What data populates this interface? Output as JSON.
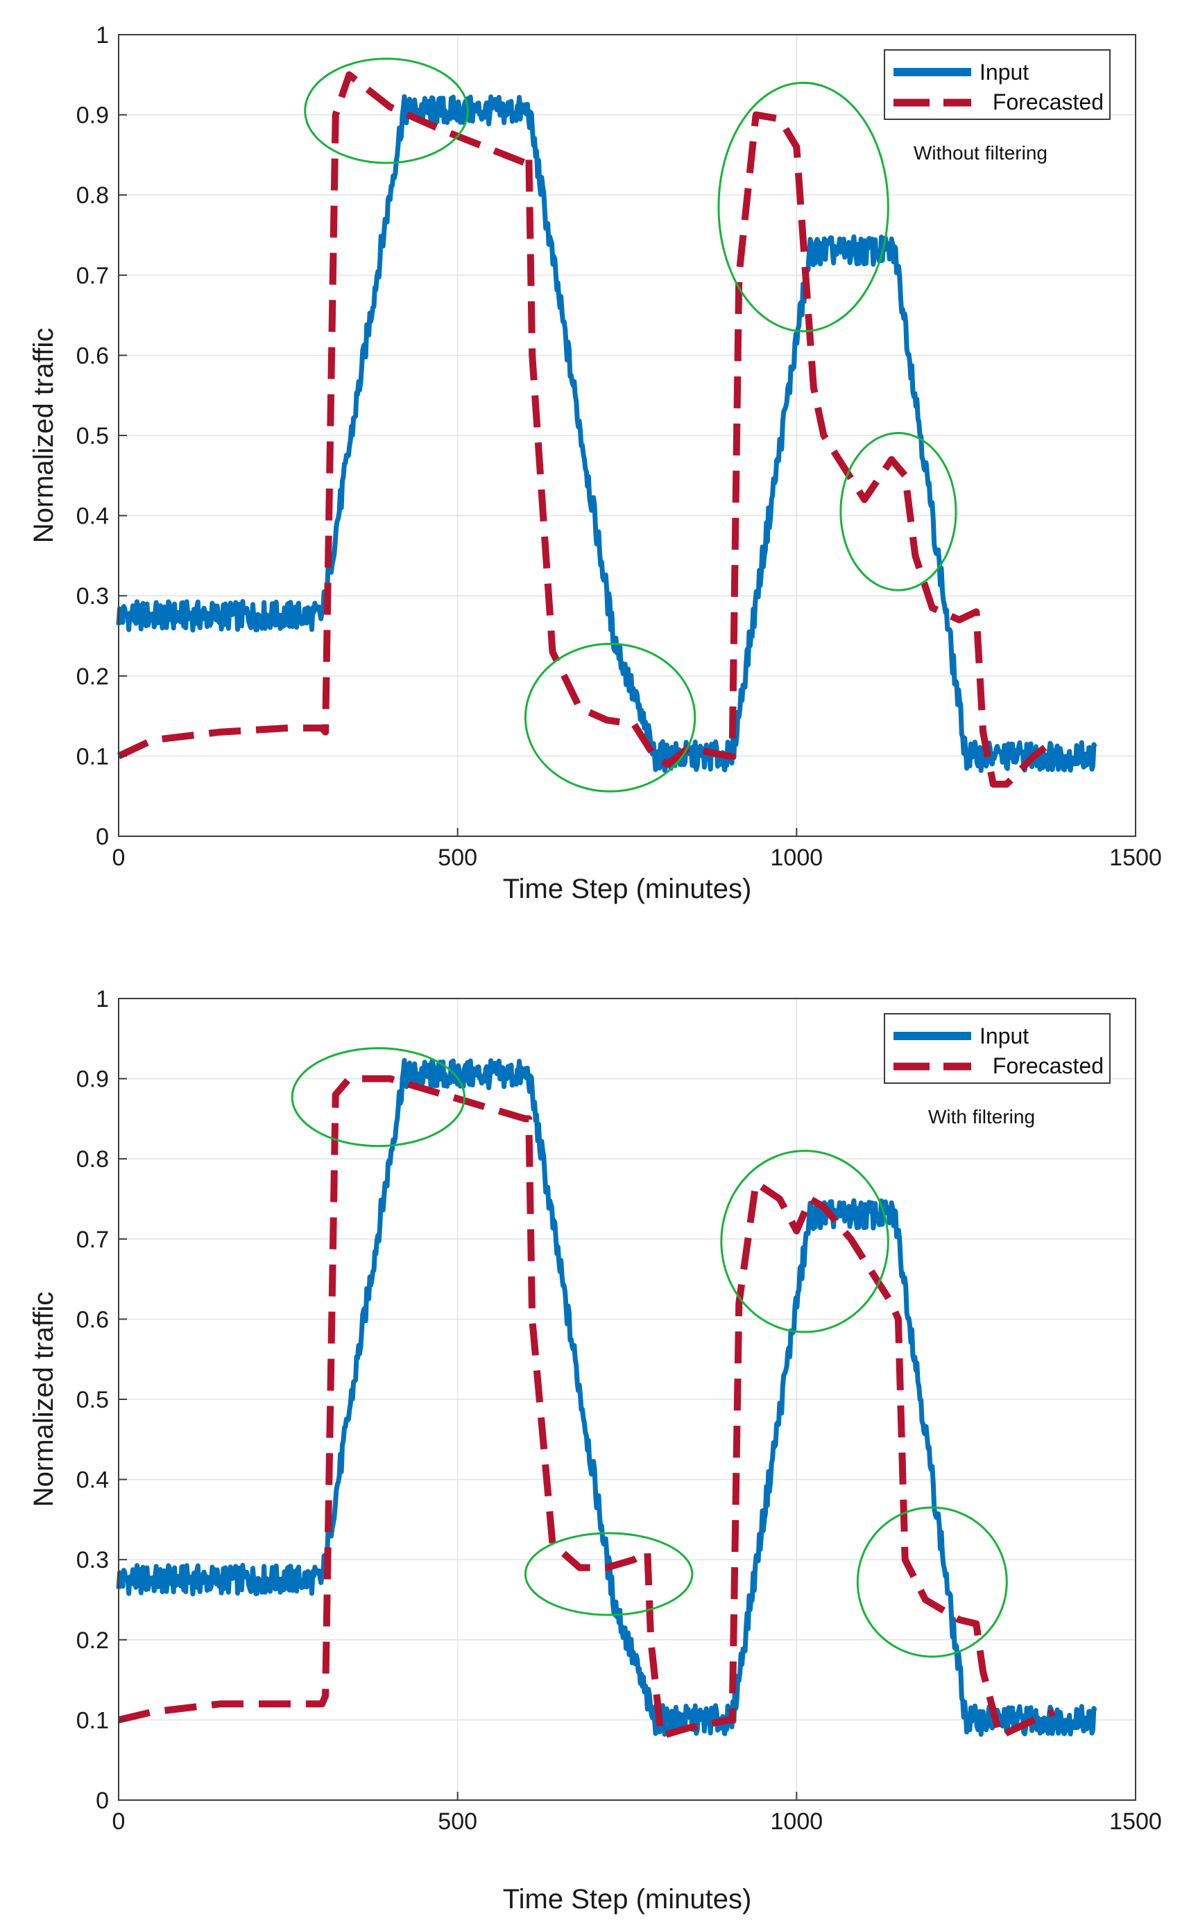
{
  "colors": {
    "input": "#0072BD",
    "forecast": "#B5122E",
    "highlight": "#19B33B",
    "grid": "#E3E3E3",
    "axis": "#3C3C3C"
  },
  "chart_data": [
    {
      "type": "line",
      "title": "",
      "annotation": "Without filtering",
      "xlabel": "Time Step (minutes)",
      "ylabel": "Normalized traffic",
      "xlim": [
        0,
        1500
      ],
      "ylim": [
        0,
        1
      ],
      "xticks": [
        0,
        500,
        1000,
        1500
      ],
      "yticks": [
        0,
        0.1,
        0.2,
        0.3,
        0.4,
        0.5,
        0.6,
        0.7,
        0.8,
        0.9,
        1
      ],
      "grid": true,
      "legend_position": "top-right",
      "series": [
        {
          "name": "Input",
          "style": "solid",
          "x": [
            0,
            300,
            305,
            420,
            605,
            730,
            790,
            800,
            905,
            1020,
            1145,
            1250,
            1440
          ],
          "y": [
            0.275,
            0.275,
            0.3,
            0.905,
            0.905,
            0.25,
            0.1,
            0.1,
            0.1,
            0.73,
            0.73,
            0.1,
            0.1
          ]
        },
        {
          "name": "Forecasted",
          "style": "dashed",
          "x": [
            0,
            50,
            150,
            250,
            300,
            305,
            320,
            340,
            400,
            480,
            600,
            605,
            610,
            640,
            680,
            720,
            760,
            790,
            810,
            840,
            900,
            905,
            915,
            940,
            975,
            1000,
            1025,
            1040,
            1100,
            1140,
            1160,
            1175,
            1200,
            1240,
            1265,
            1275,
            1290,
            1310,
            1350,
            1380
          ],
          "y": [
            0.1,
            0.12,
            0.13,
            0.135,
            0.135,
            0.13,
            0.9,
            0.95,
            0.91,
            0.88,
            0.84,
            0.85,
            0.6,
            0.23,
            0.16,
            0.145,
            0.14,
            0.1,
            0.09,
            0.11,
            0.1,
            0.1,
            0.7,
            0.9,
            0.895,
            0.86,
            0.56,
            0.5,
            0.42,
            0.47,
            0.45,
            0.35,
            0.285,
            0.27,
            0.28,
            0.13,
            0.065,
            0.065,
            0.1,
            0.12
          ]
        }
      ],
      "highlights": [
        {
          "center": [
            395,
            0.905
          ],
          "radius": [
            120,
            0.065
          ]
        },
        {
          "center": [
            1010,
            0.785
          ],
          "radius": [
            125,
            0.155
          ]
        },
        {
          "center": [
            1150,
            0.405
          ],
          "radius": [
            85,
            0.098
          ]
        },
        {
          "center": [
            725,
            0.148
          ],
          "radius": [
            125,
            0.092
          ]
        }
      ]
    },
    {
      "type": "line",
      "title": "",
      "annotation": "With filtering",
      "xlabel": "Time Step (minutes)",
      "ylabel": "Normalized traffic",
      "xlim": [
        0,
        1500
      ],
      "ylim": [
        0,
        1
      ],
      "xticks": [
        0,
        500,
        1000,
        1500
      ],
      "yticks": [
        0,
        0.1,
        0.2,
        0.3,
        0.4,
        0.5,
        0.6,
        0.7,
        0.8,
        0.9,
        1
      ],
      "grid": true,
      "legend_position": "top-right",
      "series": [
        {
          "name": "Input",
          "style": "solid",
          "x": [
            0,
            300,
            305,
            420,
            605,
            730,
            790,
            800,
            905,
            1020,
            1145,
            1250,
            1440
          ],
          "y": [
            0.275,
            0.275,
            0.3,
            0.905,
            0.905,
            0.25,
            0.1,
            0.1,
            0.1,
            0.73,
            0.73,
            0.1,
            0.1
          ]
        },
        {
          "name": "Forecasted",
          "style": "dashed",
          "x": [
            0,
            50,
            150,
            250,
            300,
            305,
            320,
            340,
            400,
            480,
            600,
            605,
            610,
            640,
            680,
            720,
            760,
            780,
            785,
            800,
            840,
            900,
            905,
            915,
            940,
            975,
            1000,
            1020,
            1040,
            1080,
            1140,
            1150,
            1160,
            1190,
            1240,
            1265,
            1275,
            1300,
            1350,
            1380
          ],
          "y": [
            0.1,
            0.11,
            0.12,
            0.12,
            0.12,
            0.13,
            0.88,
            0.9,
            0.9,
            0.88,
            0.85,
            0.85,
            0.6,
            0.32,
            0.29,
            0.29,
            0.3,
            0.31,
            0.2,
            0.08,
            0.09,
            0.1,
            0.1,
            0.62,
            0.77,
            0.75,
            0.71,
            0.75,
            0.74,
            0.7,
            0.62,
            0.6,
            0.3,
            0.25,
            0.225,
            0.22,
            0.16,
            0.08,
            0.1,
            0.11
          ]
        }
      ],
      "highlights": [
        {
          "center": [
            383,
            0.877
          ],
          "radius": [
            127,
            0.061
          ]
        },
        {
          "center": [
            1012,
            0.697
          ],
          "radius": [
            123,
            0.113
          ]
        },
        {
          "center": [
            1200,
            0.272
          ],
          "radius": [
            110,
            0.093
          ]
        },
        {
          "center": [
            723,
            0.282
          ],
          "radius": [
            123,
            0.051
          ]
        }
      ]
    }
  ]
}
